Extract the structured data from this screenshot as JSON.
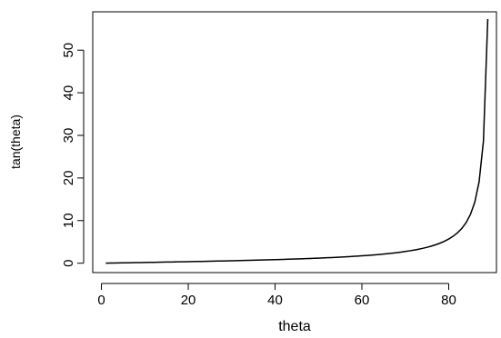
{
  "chart_data": {
    "type": "line",
    "title": "",
    "xlabel": "theta",
    "ylabel": "tan(theta)",
    "xlim": [
      -2,
      91
    ],
    "ylim": [
      -2.2,
      59
    ],
    "xticks": [
      0,
      20,
      40,
      60,
      80
    ],
    "yticks": [
      0,
      10,
      20,
      30,
      40,
      50
    ],
    "grid": false,
    "line_color": "#000000",
    "series": [
      {
        "x": [
          1,
          2,
          3,
          4,
          5,
          6,
          7,
          8,
          9,
          10,
          11,
          12,
          13,
          14,
          15,
          16,
          17,
          18,
          19,
          20,
          21,
          22,
          23,
          24,
          25,
          26,
          27,
          28,
          29,
          30,
          31,
          32,
          33,
          34,
          35,
          36,
          37,
          38,
          39,
          40,
          41,
          42,
          43,
          44,
          45,
          46,
          47,
          48,
          49,
          50,
          51,
          52,
          53,
          54,
          55,
          56,
          57,
          58,
          59,
          60,
          61,
          62,
          63,
          64,
          65,
          66,
          67,
          68,
          69,
          70,
          71,
          72,
          73,
          74,
          75,
          76,
          77,
          78,
          79,
          80,
          81,
          82,
          83,
          84,
          85,
          86,
          87,
          88,
          89
        ],
        "y": [
          0.0175,
          0.0349,
          0.0524,
          0.0699,
          0.0875,
          0.1051,
          0.1228,
          0.1405,
          0.1584,
          0.1763,
          0.1944,
          0.2126,
          0.2309,
          0.2493,
          0.2679,
          0.2867,
          0.3057,
          0.3249,
          0.3443,
          0.364,
          0.3839,
          0.404,
          0.4245,
          0.4452,
          0.4663,
          0.4877,
          0.5095,
          0.5317,
          0.5543,
          0.5774,
          0.6009,
          0.6249,
          0.6494,
          0.6745,
          0.7002,
          0.7265,
          0.7536,
          0.7813,
          0.8098,
          0.8391,
          0.8693,
          0.9004,
          0.9325,
          0.9657,
          1.0,
          1.0355,
          1.0724,
          1.1106,
          1.1504,
          1.1918,
          1.2349,
          1.2799,
          1.327,
          1.3764,
          1.4281,
          1.4826,
          1.5399,
          1.6003,
          1.6643,
          1.7321,
          1.804,
          1.8807,
          1.9626,
          2.0503,
          2.1445,
          2.246,
          2.3559,
          2.4751,
          2.6051,
          2.7475,
          2.9042,
          3.0777,
          3.2709,
          3.4874,
          3.7321,
          4.0108,
          4.3315,
          4.7046,
          5.1446,
          5.6713,
          6.3138,
          7.1154,
          8.1443,
          9.5144,
          11.4301,
          14.3007,
          19.0811,
          28.6363,
          57.29
        ]
      }
    ]
  }
}
